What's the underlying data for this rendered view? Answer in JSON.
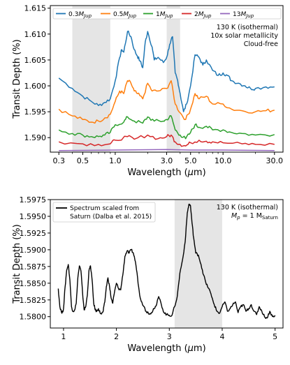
{
  "chart_data": [
    {
      "type": "line",
      "xlabel": "Wavelength (μm)",
      "ylabel": "Transit Depth (%)",
      "xscale": "log",
      "xlim": [
        0.25,
        36
      ],
      "ylim": [
        1.5872,
        1.6155
      ],
      "xticks": [
        0.3,
        0.5,
        1.0,
        3.0,
        5.0,
        10.0,
        30.0
      ],
      "xtick_labels": [
        "0.3",
        "0.5",
        "1.0",
        "3.0",
        "5.0",
        "10.0",
        "30.0"
      ],
      "yticks": [
        1.59,
        1.595,
        1.6,
        1.605,
        1.61,
        1.615
      ],
      "ytick_labels": [
        "1.590",
        "1.595",
        "1.600",
        "1.605",
        "1.610",
        "1.615"
      ],
      "shaded_bands": [
        [
          0.4,
          0.9
        ],
        [
          3.0,
          4.0
        ]
      ],
      "annotation": [
        "130 K (isothermal)",
        "10x solar metallicity",
        "Cloud-free"
      ],
      "legend_position": "top",
      "series": [
        {
          "name": "0.3M",
          "sub": "Jup",
          "color": "#1f77b4",
          "x": [
            0.3,
            0.4,
            0.5,
            0.6,
            0.7,
            0.8,
            0.9,
            1.0,
            1.1,
            1.15,
            1.2,
            1.3,
            1.4,
            1.5,
            1.6,
            1.7,
            1.8,
            1.9,
            2.0,
            2.2,
            2.3,
            2.5,
            2.8,
            3.0,
            3.2,
            3.4,
            3.6,
            3.8,
            4.0,
            4.3,
            4.6,
            5.0,
            5.5,
            6.0,
            6.5,
            7.0,
            8.0,
            9.0,
            10.0,
            11.0,
            12.0,
            14.0,
            16.0,
            18.0,
            20.0,
            25.0,
            30.0
          ],
          "y": [
            1.6015,
            1.5995,
            1.598,
            1.597,
            1.5962,
            1.5968,
            1.5975,
            1.601,
            1.6055,
            1.607,
            1.6065,
            1.6105,
            1.6095,
            1.607,
            1.6058,
            1.6048,
            1.6035,
            1.6085,
            1.6105,
            1.6075,
            1.605,
            1.6055,
            1.6045,
            1.6055,
            1.608,
            1.6095,
            1.6025,
            1.601,
            1.5985,
            1.595,
            1.5965,
            1.6,
            1.606,
            1.6055,
            1.604,
            1.605,
            1.603,
            1.602,
            1.6025,
            1.602,
            1.601,
            1.6005,
            1.6,
            1.5995,
            1.5995,
            1.5998,
            1.5998
          ]
        },
        {
          "name": "0.5M",
          "sub": "Jup",
          "color": "#ff7f0e",
          "x": [
            0.3,
            0.4,
            0.5,
            0.6,
            0.7,
            0.8,
            0.9,
            1.0,
            1.1,
            1.2,
            1.3,
            1.4,
            1.5,
            1.6,
            1.8,
            2.0,
            2.2,
            2.5,
            3.0,
            3.3,
            3.6,
            4.0,
            4.5,
            5.0,
            5.5,
            6.0,
            7.0,
            8.0,
            10.0,
            12.0,
            15.0,
            20.0,
            25.0,
            30.0
          ],
          "y": [
            1.5955,
            1.5942,
            1.5935,
            1.593,
            1.5932,
            1.5938,
            1.5945,
            1.597,
            1.599,
            1.5985,
            1.601,
            1.6005,
            1.599,
            1.5985,
            1.5975,
            1.6005,
            1.599,
            1.599,
            1.5995,
            1.601,
            1.5965,
            1.5948,
            1.5935,
            1.5955,
            1.5985,
            1.5975,
            1.598,
            1.5965,
            1.5965,
            1.5955,
            1.5952,
            1.595,
            1.5952,
            1.5953
          ]
        },
        {
          "name": "1M",
          "sub": "Jup",
          "color": "#2ca02c",
          "x": [
            0.3,
            0.4,
            0.5,
            0.6,
            0.7,
            0.8,
            0.9,
            1.0,
            1.2,
            1.3,
            1.5,
            1.8,
            2.0,
            2.3,
            2.8,
            3.0,
            3.3,
            3.6,
            4.0,
            4.5,
            5.0,
            5.5,
            6.0,
            7.0,
            8.0,
            10.0,
            12.0,
            15.0,
            20.0,
            30.0
          ],
          "y": [
            1.5915,
            1.5908,
            1.5905,
            1.5902,
            1.5902,
            1.5905,
            1.591,
            1.5925,
            1.593,
            1.594,
            1.5932,
            1.5928,
            1.594,
            1.5932,
            1.5932,
            1.5935,
            1.5942,
            1.5915,
            1.5905,
            1.5898,
            1.591,
            1.5925,
            1.592,
            1.5922,
            1.5915,
            1.5915,
            1.591,
            1.5908,
            1.5905,
            1.5906
          ]
        },
        {
          "name": "2M",
          "sub": "Jup",
          "color": "#d62728",
          "x": [
            0.3,
            0.5,
            0.7,
            0.9,
            1.0,
            1.3,
            1.5,
            2.0,
            2.5,
            3.0,
            3.3,
            3.6,
            4.0,
            4.5,
            5.0,
            6.0,
            7.0,
            8.0,
            10.0,
            15.0,
            20.0,
            30.0
          ],
          "y": [
            1.5892,
            1.5888,
            1.5887,
            1.5888,
            1.5895,
            1.5902,
            1.5897,
            1.5905,
            1.5898,
            1.5902,
            1.5905,
            1.5892,
            1.5887,
            1.5884,
            1.589,
            1.5895,
            1.5893,
            1.5892,
            1.589,
            1.5888,
            1.5887,
            1.5887
          ]
        },
        {
          "name": "13M",
          "sub": "Jup",
          "color": "#9467bd",
          "x": [
            0.3,
            1.0,
            3.0,
            5.0,
            10.0,
            30.0
          ],
          "y": [
            1.5875,
            1.5876,
            1.5877,
            1.5876,
            1.5876,
            1.5875
          ]
        }
      ]
    },
    {
      "type": "line",
      "xlabel": "Wavelength (μm)",
      "ylabel": "Transit Depth (%)",
      "xlim": [
        0.75,
        5.15
      ],
      "ylim": [
        1.5783,
        1.5975
      ],
      "xticks": [
        1,
        2,
        3,
        4,
        5
      ],
      "yticks": [
        1.58,
        1.5825,
        1.585,
        1.5875,
        1.59,
        1.5925,
        1.595,
        1.5975
      ],
      "ytick_labels": [
        "1.5800",
        "1.5825",
        "1.5850",
        "1.5875",
        "1.5900",
        "1.5925",
        "1.5950",
        "1.5975"
      ],
      "shaded_bands": [
        [
          3.1,
          4.0
        ]
      ],
      "annotation_line1": "130 K (isothermal)",
      "annotation_line2_math": "M",
      "annotation_line2_sub": "p",
      "annotation_line2_mid": " = 1 M",
      "annotation_line2_tail": "Saturn",
      "legend_position": "top-left",
      "legend_line1": "Spectrum scaled from",
      "legend_line2": "Saturn (Dalba et al. 2015)",
      "series": [
        {
          "name": "Spectrum scaled from Saturn (Dalba et al. 2015)",
          "color": "#000000",
          "x": [
            0.9,
            0.93,
            0.97,
            1.0,
            1.03,
            1.06,
            1.09,
            1.12,
            1.15,
            1.18,
            1.21,
            1.24,
            1.27,
            1.3,
            1.33,
            1.36,
            1.39,
            1.42,
            1.45,
            1.48,
            1.51,
            1.54,
            1.57,
            1.6,
            1.63,
            1.66,
            1.69,
            1.72,
            1.75,
            1.78,
            1.81,
            1.84,
            1.87,
            1.9,
            1.93,
            1.96,
            2.0,
            2.04,
            2.08,
            2.12,
            2.16,
            2.2,
            2.24,
            2.28,
            2.32,
            2.36,
            2.4,
            2.44,
            2.48,
            2.52,
            2.56,
            2.6,
            2.65,
            2.7,
            2.75,
            2.8,
            2.85,
            2.9,
            2.95,
            3.0,
            3.05,
            3.1,
            3.15,
            3.2,
            3.25,
            3.3,
            3.34,
            3.37,
            3.4,
            3.43,
            3.46,
            3.5,
            3.55,
            3.6,
            3.65,
            3.7,
            3.75,
            3.8,
            3.85,
            3.9,
            3.95,
            4.0,
            4.05,
            4.1,
            4.15,
            4.2,
            4.25,
            4.3,
            4.35,
            4.4,
            4.45,
            4.5,
            4.55,
            4.6,
            4.65,
            4.7,
            4.75,
            4.8,
            4.85,
            4.9,
            4.95,
            5.0
          ],
          "y": [
            1.5842,
            1.5815,
            1.5805,
            1.5812,
            1.5845,
            1.587,
            1.5878,
            1.5855,
            1.5815,
            1.5808,
            1.581,
            1.582,
            1.5858,
            1.5876,
            1.5868,
            1.5835,
            1.581,
            1.5815,
            1.5832,
            1.5868,
            1.5876,
            1.5855,
            1.582,
            1.581,
            1.5808,
            1.5812,
            1.5806,
            1.5804,
            1.5808,
            1.5822,
            1.5845,
            1.5858,
            1.5845,
            1.5828,
            1.582,
            1.5835,
            1.585,
            1.5842,
            1.584,
            1.5862,
            1.589,
            1.5898,
            1.5895,
            1.59,
            1.5895,
            1.5882,
            1.5858,
            1.5832,
            1.5822,
            1.5815,
            1.5808,
            1.5806,
            1.5804,
            1.5812,
            1.5816,
            1.583,
            1.5818,
            1.5806,
            1.5803,
            1.5802,
            1.5802,
            1.5815,
            1.583,
            1.5865,
            1.5885,
            1.5912,
            1.5955,
            1.5968,
            1.5966,
            1.594,
            1.5918,
            1.5895,
            1.5892,
            1.5878,
            1.5862,
            1.5848,
            1.5842,
            1.583,
            1.5818,
            1.5808,
            1.5805,
            1.5815,
            1.5822,
            1.5808,
            1.5812,
            1.5818,
            1.5822,
            1.5806,
            1.5815,
            1.5818,
            1.5808,
            1.5812,
            1.5818,
            1.5808,
            1.5803,
            1.5815,
            1.5808,
            1.58,
            1.5798,
            1.5808,
            1.58,
            1.5802
          ]
        }
      ]
    }
  ]
}
